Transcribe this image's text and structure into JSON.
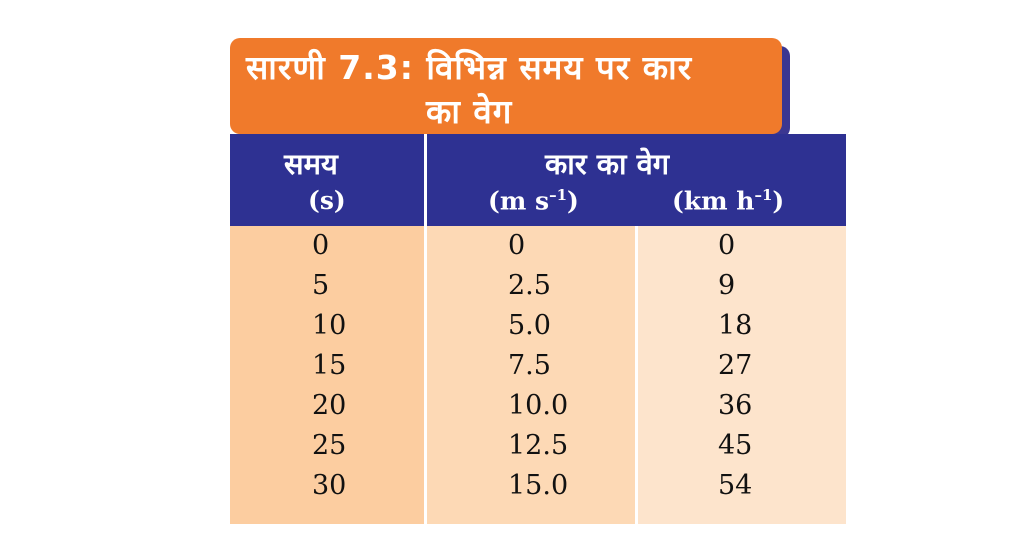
{
  "title": {
    "line1": "सारणी 7.3: विभिन्न समय पर कार",
    "line2": "का वेग"
  },
  "headers": {
    "time_label": "समय",
    "time_unit": "(s)",
    "velocity_label": "कार का वेग",
    "velocity_unit_ms": "(m s",
    "velocity_unit_ms_exp": "–1",
    "velocity_unit_ms_close": ")",
    "velocity_unit_kmh": "(km h",
    "velocity_unit_kmh_exp": "–1",
    "velocity_unit_kmh_close": ")"
  },
  "rows": [
    [
      "0",
      "0",
      "0"
    ],
    [
      "5",
      "2.5",
      "9"
    ],
    [
      "10",
      "5.0",
      "18"
    ],
    [
      "15",
      "7.5",
      "27"
    ],
    [
      "20",
      "10.0",
      "36"
    ],
    [
      "25",
      "12.5",
      "45"
    ],
    [
      "30",
      "15.0",
      "54"
    ]
  ],
  "colors": {
    "title_bg": "#f07a2b",
    "header_bg": "#2e3192",
    "col1_bg": "#fccda0",
    "col2_bg": "#fdd9b5",
    "col3_bg": "#fde4cc"
  }
}
